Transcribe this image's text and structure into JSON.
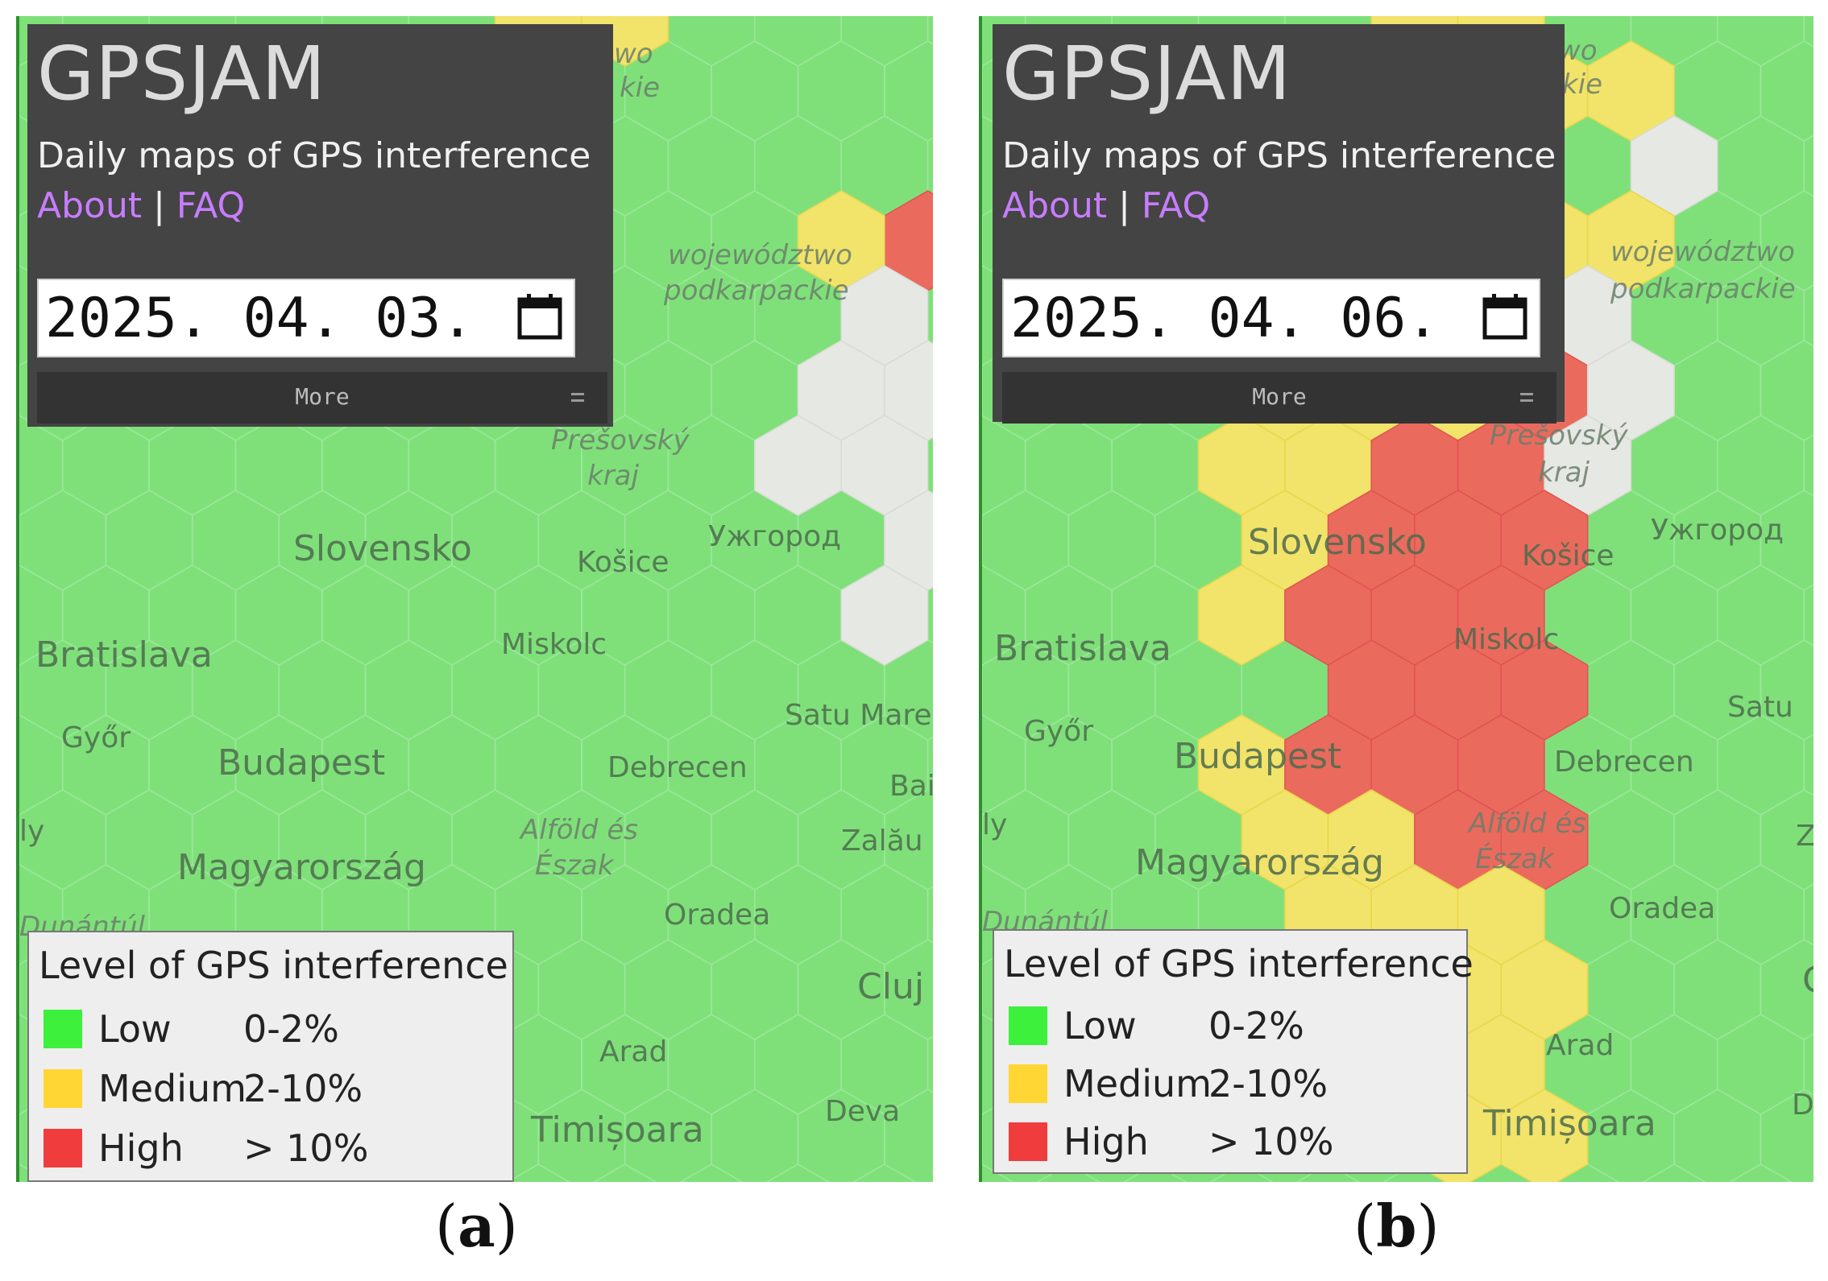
{
  "colors": {
    "low": "#3cf03c",
    "medium": "#ffd633",
    "high": "#f03c3c",
    "map_green": "#7fe07a",
    "map_yellow": "#f2e36a",
    "map_red": "#ea6a5e",
    "header_bg": "#444444",
    "link": "#c77dff"
  },
  "panels": [
    {
      "id": "a",
      "caption": "a",
      "app_title": "GPSJAM",
      "subtitle": "Daily maps of GPS interference",
      "links": {
        "about": "About",
        "separator": "|",
        "faq": "FAQ"
      },
      "date_value": "2025. 04. 03.",
      "more_label": "More",
      "legend": {
        "title": "Level of GPS interference",
        "items": [
          {
            "level": "Low",
            "range": "0-2%",
            "color": "#3cf03c"
          },
          {
            "level": "Medium",
            "range": "2-10%",
            "color": "#ffd633"
          },
          {
            "level": "High",
            "range": "> 10%",
            "color": "#f03c3c"
          }
        ]
      },
      "places": [
        {
          "name": "województwo",
          "style": "italic"
        },
        {
          "name": "podkarpackie",
          "style": "italic"
        },
        {
          "name": "Prešovský",
          "style": "italic"
        },
        {
          "name": "kraj",
          "style": "italic"
        },
        {
          "name": "Slovensko",
          "style": "region"
        },
        {
          "name": "Košice",
          "style": "city"
        },
        {
          "name": "Ужгород",
          "style": "city"
        },
        {
          "name": "Bratislava",
          "style": "capital"
        },
        {
          "name": "Miskolc",
          "style": "city"
        },
        {
          "name": "Satu Mare",
          "style": "city"
        },
        {
          "name": "Győr",
          "style": "city"
        },
        {
          "name": "Budapest",
          "style": "capital"
        },
        {
          "name": "Debrecen",
          "style": "city"
        },
        {
          "name": "Bai",
          "style": "city"
        },
        {
          "name": "Alföld és",
          "style": "italic"
        },
        {
          "name": "Észak",
          "style": "italic"
        },
        {
          "name": "Zalău",
          "style": "city"
        },
        {
          "name": "Magyarország",
          "style": "region"
        },
        {
          "name": "Dunántúl",
          "style": "italic"
        },
        {
          "name": "Oradea",
          "style": "city"
        },
        {
          "name": "Cluj",
          "style": "capital"
        },
        {
          "name": "Arad",
          "style": "city"
        },
        {
          "name": "Deva",
          "style": "city"
        },
        {
          "name": "Timișoara",
          "style": "capital"
        },
        {
          "name": "ly",
          "style": "city"
        },
        {
          "name": "wo",
          "style": "italic"
        },
        {
          "name": "kie",
          "style": "italic"
        }
      ]
    },
    {
      "id": "b",
      "caption": "b",
      "app_title": "GPSJAM",
      "subtitle": "Daily maps of GPS interference",
      "links": {
        "about": "About",
        "separator": "|",
        "faq": "FAQ"
      },
      "date_value": "2025. 04. 06.",
      "more_label": "More",
      "legend": {
        "title": "Level of GPS interference",
        "items": [
          {
            "level": "Low",
            "range": "0-2%",
            "color": "#3cf03c"
          },
          {
            "level": "Medium",
            "range": "2-10%",
            "color": "#ffd633"
          },
          {
            "level": "High",
            "range": "> 10%",
            "color": "#f03c3c"
          }
        ]
      },
      "places": [
        {
          "name": "województwo",
          "style": "italic"
        },
        {
          "name": "podkarpackie",
          "style": "italic"
        },
        {
          "name": "Prešovský",
          "style": "italic"
        },
        {
          "name": "kraj",
          "style": "italic"
        },
        {
          "name": "Slovensko",
          "style": "region"
        },
        {
          "name": "Košice",
          "style": "city"
        },
        {
          "name": "Ужгород",
          "style": "city"
        },
        {
          "name": "Bratislava",
          "style": "capital"
        },
        {
          "name": "Miskolc",
          "style": "city"
        },
        {
          "name": "Satu",
          "style": "city"
        },
        {
          "name": "Győr",
          "style": "city"
        },
        {
          "name": "Budapest",
          "style": "capital"
        },
        {
          "name": "Debrecen",
          "style": "city"
        },
        {
          "name": "Alföld és",
          "style": "italic"
        },
        {
          "name": "Észak",
          "style": "italic"
        },
        {
          "name": "Z",
          "style": "city"
        },
        {
          "name": "Magyarország",
          "style": "region"
        },
        {
          "name": "Dunántúl",
          "style": "italic"
        },
        {
          "name": "Oradea",
          "style": "city"
        },
        {
          "name": "C",
          "style": "capital"
        },
        {
          "name": "Arad",
          "style": "city"
        },
        {
          "name": "De",
          "style": "city"
        },
        {
          "name": "Timișoara",
          "style": "capital"
        },
        {
          "name": "ly",
          "style": "city"
        },
        {
          "name": "wo",
          "style": "italic"
        },
        {
          "name": "kie",
          "style": "italic"
        }
      ]
    }
  ]
}
